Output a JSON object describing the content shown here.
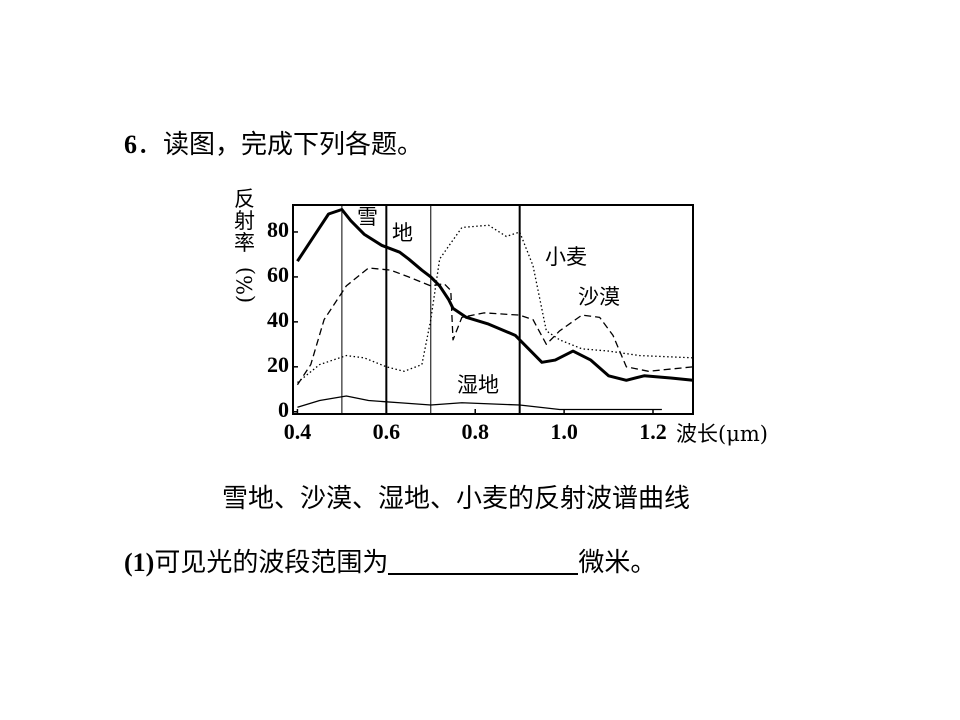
{
  "question": {
    "number": "6",
    "text": "．读图，完成下列各题。"
  },
  "caption": "雪地、沙漠、湿地、小麦的反射波谱曲线",
  "sub_question": {
    "number": "(1)",
    "text": "可见光的波段范围为",
    "unit": "微米。"
  },
  "chart_data": {
    "type": "line",
    "x_label": "波长(μm)",
    "y_label": "反射率",
    "y_label_unit": "(%)",
    "xlim": [
      0.39,
      1.29
    ],
    "ylim": [
      -1,
      92
    ],
    "xticks": [
      0.4,
      0.6,
      0.8,
      {
        "value": 1.0,
        "label": "1.0"
      },
      1.2
    ],
    "yticks": [
      0,
      20,
      40,
      60,
      80
    ],
    "vlines": [
      {
        "x": 0.5,
        "width": 1
      },
      {
        "x": 0.6,
        "width": 2
      },
      {
        "x": 0.7,
        "width": 1
      },
      {
        "x": 0.9,
        "width": 2
      }
    ],
    "series": [
      {
        "name": "雪地",
        "color": "#000",
        "style": "thick",
        "x": [
          0.4,
          0.44,
          0.47,
          0.5,
          0.52,
          0.55,
          0.59,
          0.63,
          0.65,
          0.68,
          0.7,
          0.72,
          0.74,
          0.75,
          0.78,
          0.83,
          0.89,
          0.92,
          0.95,
          0.98,
          1.02,
          1.06,
          1.1,
          1.14,
          1.18,
          1.24,
          1.29
        ],
        "values": [
          67,
          79,
          88,
          90,
          85,
          79,
          74,
          71,
          68,
          63,
          60,
          56,
          50,
          46,
          42,
          39,
          34,
          28,
          22,
          23,
          27,
          23,
          16,
          14,
          16,
          15,
          14
        ]
      },
      {
        "name": "沙漠",
        "color": "#000",
        "style": "dashed",
        "x": [
          0.4,
          0.43,
          0.46,
          0.51,
          0.56,
          0.61,
          0.65,
          0.7,
          0.73,
          0.745,
          0.75,
          0.77,
          0.82,
          0.9,
          0.93,
          0.96,
          0.99,
          1.04,
          1.08,
          1.11,
          1.14,
          1.19,
          1.29
        ],
        "values": [
          12,
          21,
          41,
          56,
          64,
          63,
          60,
          56,
          57,
          54,
          32,
          42,
          44,
          43,
          41,
          30,
          36,
          43,
          42,
          34,
          20,
          18,
          20
        ]
      },
      {
        "name": "湿地",
        "color": "#000",
        "style": "thin",
        "x": [
          0.4,
          0.45,
          0.51,
          0.56,
          0.63,
          0.7,
          0.77,
          0.9,
          0.99,
          1.08,
          1.22
        ],
        "values": [
          2,
          5,
          7,
          5,
          4,
          3,
          4,
          3,
          1,
          1,
          1
        ]
      },
      {
        "name": "小麦",
        "color": "#000",
        "style": "dotted",
        "x": [
          0.4,
          0.45,
          0.51,
          0.55,
          0.6,
          0.64,
          0.68,
          0.7,
          0.72,
          0.77,
          0.83,
          0.87,
          0.9,
          0.93,
          0.96,
          0.99,
          1.04,
          1.1,
          1.17,
          1.29
        ],
        "values": [
          13,
          21,
          25,
          24,
          20,
          18,
          21,
          41,
          68,
          82,
          83,
          78,
          80,
          65,
          36,
          32,
          28,
          27,
          25,
          24
        ]
      }
    ]
  }
}
